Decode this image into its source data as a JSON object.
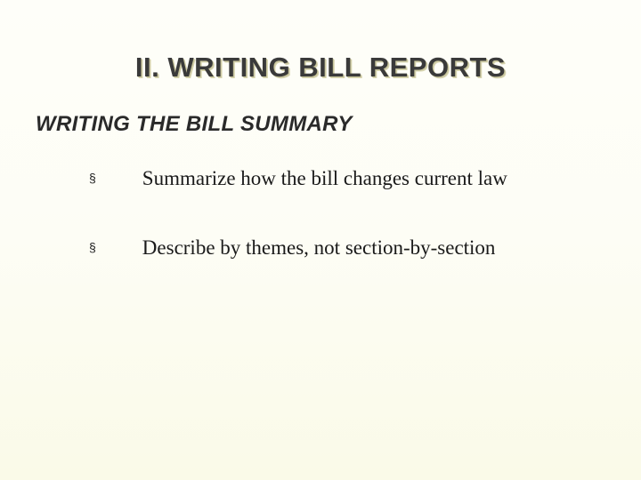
{
  "slide": {
    "title": "II.  WRITING BILL REPORTS",
    "subtitle": "WRITING THE BILL SUMMARY",
    "bullets": [
      {
        "marker": "§",
        "text": "Summarize how the bill changes current law"
      },
      {
        "marker": "§",
        "text": "Describe by themes, not section-by-section"
      }
    ]
  },
  "styling": {
    "background_gradient_top": "#fefef9",
    "background_gradient_middle": "#fdfdf5",
    "background_gradient_bottom": "#fafae8",
    "title_color": "#3a3a3a",
    "title_shadow_color": "#c5c29a",
    "title_fontsize": 31,
    "subtitle_color": "#2a2a2a",
    "subtitle_fontsize": 24,
    "bullet_text_color": "#1a1a1a",
    "bullet_text_fontsize": 23,
    "bullet_marker_fontsize": 14,
    "title_font": "Arial",
    "bullet_font": "Times New Roman"
  }
}
